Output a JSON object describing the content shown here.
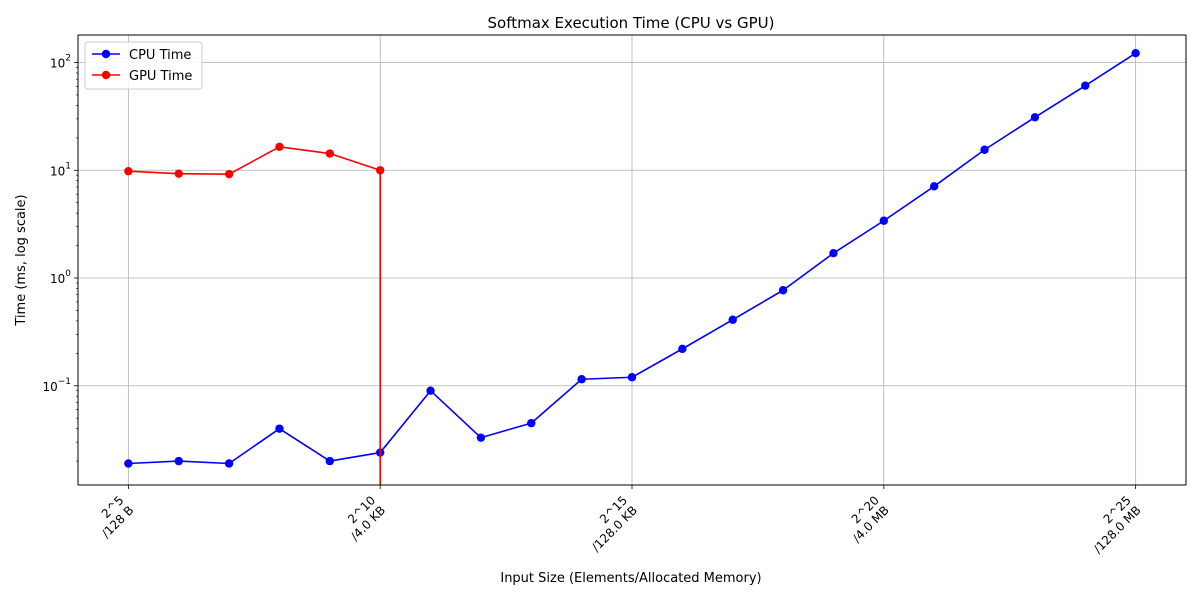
{
  "chart_data": {
    "type": "line",
    "title": "Softmax Execution Time (CPU vs GPU)",
    "xlabel": "Input Size (Elements/Allocated Memory)",
    "ylabel": "Time (ms, log scale)",
    "y_scale": "log",
    "xlim": [
      4,
      26
    ],
    "ylim": [
      0.012,
      180
    ],
    "grid": true,
    "legend_position": "top-left",
    "x_ticks": [
      {
        "x": 5,
        "line1": "2^5",
        "line2": "/128 B"
      },
      {
        "x": 10,
        "line1": "2^10",
        "line2": "/4.0 KB"
      },
      {
        "x": 15,
        "line1": "2^15",
        "line2": "/128.0 KB"
      },
      {
        "x": 20,
        "line1": "2^20",
        "line2": "/4.0 MB"
      },
      {
        "x": 25,
        "line1": "2^25",
        "line2": "/128.0 MB"
      }
    ],
    "y_ticks": [
      {
        "value": 0.1,
        "base": "10",
        "exp": "−1"
      },
      {
        "value": 1,
        "base": "10",
        "exp": "0"
      },
      {
        "value": 10,
        "base": "10",
        "exp": "1"
      },
      {
        "value": 100,
        "base": "10",
        "exp": "2"
      }
    ],
    "series": [
      {
        "name": "CPU Time",
        "color": "#0000ff",
        "x": [
          5,
          6,
          7,
          8,
          9,
          10,
          11,
          12,
          13,
          14,
          15,
          16,
          17,
          18,
          19,
          20,
          21,
          22,
          23,
          24,
          25
        ],
        "values": [
          0.019,
          0.02,
          0.019,
          0.04,
          0.02,
          0.024,
          0.09,
          0.033,
          0.045,
          0.115,
          0.12,
          0.22,
          0.41,
          0.77,
          1.7,
          3.4,
          7.1,
          15.5,
          31,
          61,
          122
        ]
      },
      {
        "name": "GPU Time",
        "color": "#ff0000",
        "x": [
          5,
          6,
          7,
          8,
          9,
          10
        ],
        "values": [
          9.8,
          9.3,
          9.2,
          16.5,
          14.3,
          10.0
        ],
        "drop_after_last": true
      }
    ]
  }
}
